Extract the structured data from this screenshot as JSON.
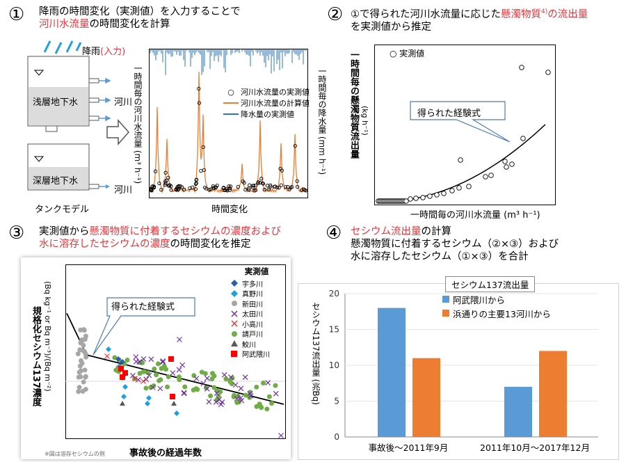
{
  "sections": [
    {
      "num": "①",
      "line1a": "降雨の時間変化（実測値）を入力することで",
      "line2a": "河川水流量",
      "line2b": "の時間変化を計算"
    },
    {
      "num": "②",
      "line1a": "①で得られた河川水流量に応じた",
      "line1b": "懸濁物質",
      "line1sup": "4)",
      "line1c": "の流出量",
      "line2a": "を実測値から推定"
    },
    {
      "num": "③",
      "line1a": "実測値から",
      "line1b": "懸濁物質に付着するセシウムの濃度および",
      "line2a": "水に溶存したセシウムの濃度",
      "line2b": "の時間変化を推定"
    },
    {
      "num": "④",
      "line1a": "セシウム流出量",
      "line1b": "の計算",
      "line2a": "懸濁物質に付着するセシウム（②×③）および",
      "line3a": "水に溶存したセシウム（①×③）を合計"
    }
  ],
  "tank": {
    "rain_label": "降雨",
    "rain_input": "(入力)",
    "shallow": "浅層地下水",
    "deep": "深層地下水",
    "river": "河川",
    "caption": "タンクモデル"
  },
  "panel1": {
    "ylabel_left": "一時間毎の河川水流量 (m³ h⁻¹)",
    "ylabel_right": "一時間毎の降水量 (mm h⁻¹)",
    "xlabel": "時間変化",
    "legend": [
      "河川水流量の実測値",
      "河川水流量の計算値",
      "降水量の実測値"
    ],
    "colors": {
      "observed": "#000000",
      "calculated": "#ed7d31",
      "rain": "#2e75b6"
    }
  },
  "panel2": {
    "legend": "実測値",
    "callout": "得られた経験式",
    "ylabel": "一時間毎の懸濁物質流出量",
    "yunit": "(kg h⁻¹)",
    "xlabel": "一時間毎の河川水流量 (m³ h⁻¹)"
  },
  "panel3": {
    "legend_title": "実測値",
    "legend": [
      {
        "name": "宇多川",
        "color": "#2e5fa8",
        "marker": "diamond"
      },
      {
        "name": "真野川",
        "color": "#1ba1e2",
        "marker": "diamond"
      },
      {
        "name": "新田川",
        "color": "#a6a6a6",
        "marker": "circle"
      },
      {
        "name": "太田川",
        "color": "#7030a0",
        "marker": "x"
      },
      {
        "name": "小高川",
        "color": "#e8343a",
        "marker": "x"
      },
      {
        "name": "請戸川",
        "color": "#70ad47",
        "marker": "circle"
      },
      {
        "name": "鮫川",
        "color": "#595959",
        "marker": "triangle"
      },
      {
        "name": "阿武隈川",
        "color": "#ff0000",
        "marker": "square"
      }
    ],
    "callout": "得られた経験式",
    "ylabel1": "規格化セシウム137濃度",
    "ylabel2": "(Bq kg⁻¹ or Bq m⁻³)/(Bq m⁻²)",
    "xlabel": "事故後の経過年数",
    "footnote": "※図は溶存セシウムの例"
  },
  "chart_data": {
    "type": "bar",
    "title": "セシウム137流出量",
    "ylabel": "セシウム137流出量 (兆Bq)",
    "ylim": [
      0,
      20
    ],
    "yticks": [
      "0",
      "5",
      "10",
      "15",
      "20"
    ],
    "categories": [
      "事故後～2011年9月",
      "2011年10月～2017年12月"
    ],
    "series": [
      {
        "name": "阿武隈川から",
        "color": "#5b9bd5",
        "values": [
          18,
          7
        ]
      },
      {
        "name": "浜通りの主要13河川から",
        "color": "#ed7d31",
        "values": [
          11,
          12
        ]
      }
    ]
  }
}
